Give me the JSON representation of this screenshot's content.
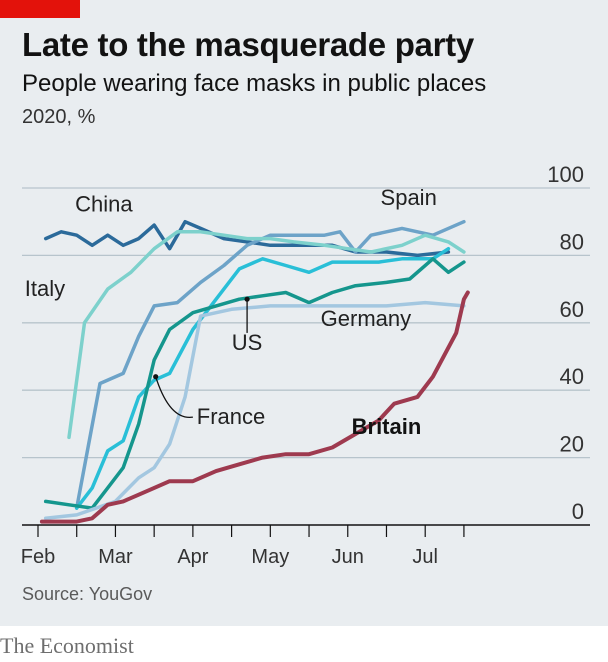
{
  "header": {
    "title": "Late to the masquerade party",
    "subtitle": "People wearing face masks in public places",
    "units": "2020, %"
  },
  "footer": {
    "source": "Source: YouGov",
    "brand": "The Economist"
  },
  "colors": {
    "background": "#e9edf0",
    "brand_red": "#e3120b",
    "grid": "#b7c4cc",
    "axis": "#121212"
  },
  "chart_data": {
    "type": "line",
    "x_unit": "month",
    "x_range": [
      1.5,
      7.75
    ],
    "ylim": [
      0,
      100
    ],
    "y_ticks": [
      0,
      20,
      40,
      60,
      80,
      100
    ],
    "y_axis_side": "right",
    "x_tick_labels": [
      {
        "x": 1.5,
        "label": "Feb"
      },
      {
        "x": 2.5,
        "label": "Mar"
      },
      {
        "x": 3.5,
        "label": "Apr"
      },
      {
        "x": 4.5,
        "label": "May"
      },
      {
        "x": 5.5,
        "label": "Jun"
      },
      {
        "x": 6.5,
        "label": "Jul"
      }
    ],
    "legend": "direct labels on lines",
    "series": [
      {
        "name": "China",
        "color": "#2b6a9a",
        "width": 3.5,
        "points": [
          [
            1.6,
            85
          ],
          [
            1.8,
            87
          ],
          [
            2.0,
            86
          ],
          [
            2.2,
            83
          ],
          [
            2.4,
            86
          ],
          [
            2.6,
            83
          ],
          [
            2.8,
            85
          ],
          [
            3.0,
            89
          ],
          [
            3.2,
            82
          ],
          [
            3.4,
            90
          ],
          [
            3.6,
            88
          ],
          [
            3.9,
            85
          ],
          [
            4.2,
            84
          ],
          [
            4.5,
            83
          ],
          [
            4.9,
            83
          ],
          [
            5.3,
            83
          ],
          [
            5.6,
            81
          ],
          [
            6.0,
            81
          ],
          [
            6.4,
            80
          ],
          [
            6.8,
            81
          ]
        ]
      },
      {
        "name": "Spain",
        "color": "#6da3c8",
        "width": 3.5,
        "points": [
          [
            2.0,
            5
          ],
          [
            2.3,
            42
          ],
          [
            2.6,
            45
          ],
          [
            2.8,
            56
          ],
          [
            3.0,
            65
          ],
          [
            3.3,
            66
          ],
          [
            3.6,
            72
          ],
          [
            3.9,
            77
          ],
          [
            4.2,
            83
          ],
          [
            4.5,
            86
          ],
          [
            4.8,
            86
          ],
          [
            5.2,
            86
          ],
          [
            5.4,
            87
          ],
          [
            5.6,
            81
          ],
          [
            5.8,
            86
          ],
          [
            6.2,
            88
          ],
          [
            6.6,
            86
          ],
          [
            7.0,
            90
          ]
        ]
      },
      {
        "name": "Italy",
        "color": "#7dd1cc",
        "width": 3.5,
        "points": [
          [
            1.9,
            26
          ],
          [
            2.1,
            60
          ],
          [
            2.4,
            70
          ],
          [
            2.7,
            75
          ],
          [
            3.0,
            82
          ],
          [
            3.3,
            87
          ],
          [
            3.6,
            87
          ],
          [
            3.9,
            86
          ],
          [
            4.2,
            85
          ],
          [
            4.5,
            85
          ],
          [
            4.8,
            84
          ],
          [
            5.2,
            83
          ],
          [
            5.5,
            82
          ],
          [
            5.8,
            81
          ],
          [
            6.2,
            83
          ],
          [
            6.5,
            86
          ],
          [
            6.8,
            84
          ],
          [
            7.0,
            81
          ]
        ]
      },
      {
        "name": "",
        "color": "#29bfd7",
        "width": 3.5,
        "points": [
          [
            2.0,
            5
          ],
          [
            2.2,
            11
          ],
          [
            2.4,
            22
          ],
          [
            2.6,
            25
          ],
          [
            2.8,
            38
          ],
          [
            3.0,
            43
          ],
          [
            3.2,
            45
          ],
          [
            3.5,
            58
          ],
          [
            3.8,
            67
          ],
          [
            4.1,
            76
          ],
          [
            4.4,
            79
          ],
          [
            4.7,
            77
          ],
          [
            5.0,
            75
          ],
          [
            5.3,
            78
          ],
          [
            5.6,
            78
          ],
          [
            5.9,
            78
          ],
          [
            6.2,
            79
          ],
          [
            6.6,
            79
          ],
          [
            6.8,
            82
          ]
        ]
      },
      {
        "name": "US",
        "color": "#15968d",
        "width": 3.5,
        "points": [
          [
            1.6,
            7
          ],
          [
            1.9,
            6
          ],
          [
            2.2,
            5
          ],
          [
            2.4,
            11
          ],
          [
            2.6,
            17
          ],
          [
            2.8,
            30
          ],
          [
            3.0,
            49
          ],
          [
            3.2,
            58
          ],
          [
            3.5,
            63
          ],
          [
            3.8,
            65
          ],
          [
            4.1,
            67
          ],
          [
            4.4,
            68
          ],
          [
            4.7,
            69
          ],
          [
            5.0,
            66
          ],
          [
            5.3,
            69
          ],
          [
            5.6,
            71
          ],
          [
            6.0,
            72
          ],
          [
            6.3,
            73
          ],
          [
            6.6,
            79
          ],
          [
            6.8,
            75
          ],
          [
            7.0,
            78
          ]
        ]
      },
      {
        "name": "Germany",
        "color": "#a3c7e0",
        "width": 3.5,
        "points": [
          [
            1.6,
            2
          ],
          [
            2.0,
            3
          ],
          [
            2.5,
            7
          ],
          [
            2.8,
            14
          ],
          [
            3.0,
            17
          ],
          [
            3.2,
            24
          ],
          [
            3.4,
            38
          ],
          [
            3.6,
            62
          ],
          [
            4.0,
            64
          ],
          [
            4.5,
            65
          ],
          [
            5.0,
            65
          ],
          [
            5.5,
            65
          ],
          [
            6.0,
            65
          ],
          [
            6.5,
            66
          ],
          [
            7.0,
            65
          ]
        ]
      },
      {
        "name": "Britain",
        "color": "#9e3a4f",
        "width": 4,
        "points": [
          [
            1.55,
            1
          ],
          [
            2.0,
            1
          ],
          [
            2.2,
            2
          ],
          [
            2.4,
            6
          ],
          [
            2.6,
            7
          ],
          [
            2.8,
            9
          ],
          [
            3.0,
            11
          ],
          [
            3.2,
            13
          ],
          [
            3.5,
            13
          ],
          [
            3.8,
            16
          ],
          [
            4.1,
            18
          ],
          [
            4.4,
            20
          ],
          [
            4.7,
            21
          ],
          [
            5.0,
            21
          ],
          [
            5.3,
            23
          ],
          [
            5.6,
            27
          ],
          [
            5.9,
            31
          ],
          [
            6.1,
            36
          ],
          [
            6.4,
            38
          ],
          [
            6.6,
            44
          ],
          [
            6.9,
            57
          ],
          [
            7.0,
            67
          ],
          [
            7.05,
            69
          ]
        ]
      }
    ],
    "labels": [
      {
        "text": "China",
        "series": "China",
        "x": 2.35,
        "y": 93,
        "anchor": "middle",
        "bold": false
      },
      {
        "text": "Spain",
        "series": "Spain",
        "x": 6.65,
        "y": 95,
        "anchor": "end",
        "bold": false
      },
      {
        "text": "Italy",
        "series": "Italy",
        "x": 1.85,
        "y": 68,
        "anchor": "end",
        "bold": false
      },
      {
        "text": "Germany",
        "series": "Germany",
        "x": 5.15,
        "y": 59,
        "anchor": "start",
        "bold": false
      },
      {
        "text": "US",
        "series": "US",
        "x": 4.2,
        "y": 52,
        "anchor": "middle",
        "bold": false
      },
      {
        "text": "France",
        "series": "",
        "x": 3.55,
        "y": 30,
        "anchor": "start",
        "bold": false
      },
      {
        "text": "Britain",
        "series": "Britain",
        "x": 5.55,
        "y": 27,
        "anchor": "start",
        "bold": true
      }
    ]
  }
}
